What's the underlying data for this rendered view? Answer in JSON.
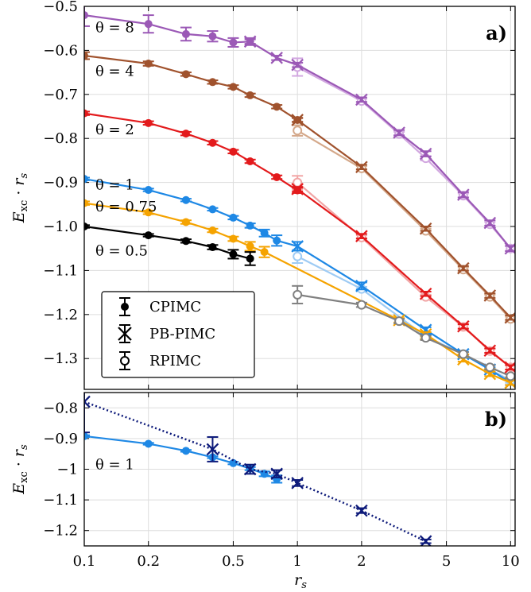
{
  "chart_data": [
    {
      "panel_label": "a)",
      "type": "line",
      "ylabel": "E_xc · r_s",
      "ylim": [
        -1.37,
        -0.5
      ],
      "x_scale": "log",
      "xlim": [
        0.1,
        10.5
      ],
      "grid": true,
      "legend": {
        "placement": "bottom-left",
        "entries": [
          {
            "label": "CPIMC",
            "marker": "filled-circle"
          },
          {
            "label": "PB-PIMC",
            "marker": "cross"
          },
          {
            "label": "RPIMC",
            "marker": "open-circle"
          }
        ]
      },
      "series": [
        {
          "theta_label": "θ = 8",
          "color": "#9b59b6",
          "light_color": "#d2a8e0",
          "cpimc": {
            "x": [
              0.1,
              0.2,
              0.3,
              0.4,
              0.5,
              0.6
            ],
            "y": [
              -0.52,
              -0.54,
              -0.563,
              -0.568,
              -0.582,
              -0.58
            ],
            "err": [
              0.025,
              0.02,
              0.015,
              0.012,
              0.01,
              0.008
            ]
          },
          "pbpimc": {
            "x": [
              0.6,
              0.8,
              1,
              2,
              3,
              4,
              6,
              8,
              10
            ],
            "y": [
              -0.58,
              -0.617,
              -0.633,
              -0.712,
              -0.787,
              -0.835,
              -0.928,
              -0.992,
              -1.05
            ],
            "err": [
              0.005,
              0.005,
              0.005,
              0.005,
              0.006,
              0.006,
              0.006,
              0.006,
              0.006
            ]
          },
          "rpimc": {
            "x": [
              1,
              2,
              3,
              4,
              6,
              8,
              10
            ],
            "y": [
              -0.638,
              -0.715,
              -0.79,
              -0.845,
              -0.93,
              -0.995,
              -1.05
            ],
            "err": [
              0.02,
              0.005,
              0.005,
              0.005,
              0.005,
              0.005,
              0.005
            ]
          }
        },
        {
          "theta_label": "θ = 4",
          "color": "#a0522d",
          "light_color": "#d4a88a",
          "cpimc": {
            "x": [
              0.1,
              0.2,
              0.3,
              0.4,
              0.5,
              0.6,
              0.8,
              1
            ],
            "y": [
              -0.612,
              -0.63,
              -0.654,
              -0.672,
              -0.683,
              -0.702,
              -0.728,
              -0.758
            ],
            "err": [
              0.008,
              0.005,
              0.004,
              0.004,
              0.004,
              0.004,
              0.004,
              0.004
            ]
          },
          "pbpimc": {
            "x": [
              1,
              2,
              4,
              6,
              8,
              10
            ],
            "y": [
              -0.758,
              -0.865,
              -1.005,
              -1.095,
              -1.157,
              -1.207
            ],
            "err": [
              0.005,
              0.005,
              0.005,
              0.005,
              0.005,
              0.005
            ]
          },
          "rpimc": {
            "x": [
              1,
              2,
              4,
              6,
              8,
              10
            ],
            "y": [
              -0.782,
              -0.868,
              -1.01,
              -1.098,
              -1.16,
              -1.21
            ],
            "err": [
              0.012,
              0.005,
              0.005,
              0.005,
              0.005,
              0.005
            ]
          }
        },
        {
          "theta_label": "θ = 2",
          "color": "#e31a1c",
          "light_color": "#f1a5a5",
          "cpimc": {
            "x": [
              0.1,
              0.2,
              0.3,
              0.4,
              0.5,
              0.6,
              0.8,
              1
            ],
            "y": [
              -0.743,
              -0.765,
              -0.789,
              -0.81,
              -0.83,
              -0.852,
              -0.888,
              -0.918
            ],
            "err": [
              0.004,
              0.004,
              0.004,
              0.004,
              0.004,
              0.004,
              0.004,
              0.006
            ]
          },
          "pbpimc": {
            "x": [
              1,
              2,
              4,
              6,
              8,
              10
            ],
            "y": [
              -0.915,
              -1.022,
              -1.153,
              -1.227,
              -1.282,
              -1.32
            ],
            "err": [
              0.005,
              0.005,
              0.005,
              0.005,
              0.005,
              0.005
            ]
          },
          "rpimc": {
            "x": [
              1,
              2,
              4,
              6,
              8,
              10
            ],
            "y": [
              -0.9,
              -1.025,
              -1.16,
              -1.228,
              -1.283,
              -1.32
            ],
            "err": [
              0.015,
              0.005,
              0.005,
              0.005,
              0.005,
              0.005
            ]
          }
        },
        {
          "theta_label": "θ = 1",
          "color": "#1e88e5",
          "light_color": "#9ecbf4",
          "cpimc": {
            "x": [
              0.1,
              0.2,
              0.3,
              0.4,
              0.5,
              0.6,
              0.7,
              0.8
            ],
            "y": [
              -0.892,
              -0.917,
              -0.94,
              -0.961,
              -0.98,
              -0.998,
              -1.015,
              -1.032
            ],
            "err": [
              0.003,
              0.003,
              0.003,
              0.003,
              0.004,
              0.005,
              0.008,
              0.012
            ]
          },
          "pbpimc": {
            "x": [
              1,
              2,
              4,
              6,
              8,
              10
            ],
            "y": [
              -1.045,
              -1.135,
              -1.235,
              -1.29,
              -1.325,
              -1.355
            ],
            "err": [
              0.01,
              0.008,
              0.006,
              0.005,
              0.005,
              0.005
            ]
          },
          "rpimc": {
            "x": [
              1,
              2,
              4,
              6,
              8,
              10
            ],
            "y": [
              -1.068,
              -1.142,
              -1.25,
              -1.29,
              -1.325,
              -1.35
            ],
            "err": [
              0.015,
              0.005,
              0.005,
              0.005,
              0.005,
              0.005
            ]
          }
        },
        {
          "theta_label": "θ = 0.75",
          "color": "#f5a300",
          "light_color": "#f9d27a",
          "cpimc": {
            "x": [
              0.1,
              0.2,
              0.3,
              0.4,
              0.5,
              0.6,
              0.7
            ],
            "y": [
              -0.947,
              -0.968,
              -0.99,
              -1.009,
              -1.028,
              -1.045,
              -1.058
            ],
            "err": [
              0.004,
              0.004,
              0.004,
              0.004,
              0.005,
              0.01,
              0.012
            ]
          },
          "pbpimc": {
            "x": [
              3,
              4,
              6,
              8,
              10
            ],
            "y": [
              -1.213,
              -1.245,
              -1.302,
              -1.335,
              -1.355
            ],
            "err": [
              0.005,
              0.005,
              0.005,
              0.005,
              0.005
            ]
          },
          "rpimc": {
            "x": [],
            "y": [],
            "err": []
          }
        },
        {
          "theta_label": "θ = 0.5",
          "color": "#000000",
          "light_color": "#808080",
          "cpimc": {
            "x": [
              0.1,
              0.2,
              0.3,
              0.4,
              0.5,
              0.6
            ],
            "y": [
              -1.0,
              -1.02,
              -1.033,
              -1.047,
              -1.063,
              -1.073
            ],
            "err": [
              0.003,
              0.003,
              0.004,
              0.005,
              0.01,
              0.015
            ]
          },
          "pbpimc": {
            "x": [],
            "y": [],
            "err": []
          },
          "rpimc": {
            "x": [
              1,
              2,
              3,
              4,
              6,
              8,
              10
            ],
            "y": [
              -1.155,
              -1.178,
              -1.215,
              -1.253,
              -1.29,
              -1.32,
              -1.34
            ],
            "err": [
              0.02,
              0.005,
              0.005,
              0.005,
              0.005,
              0.005,
              0.005
            ]
          }
        }
      ],
      "tick_labels_y": [
        "−0.5",
        "−0.6",
        "−0.7",
        "−0.8",
        "−0.9",
        "−1.0",
        "−1.1",
        "−1.2",
        "−1.3"
      ],
      "tick_values_y": [
        -0.5,
        -0.6,
        -0.7,
        -0.8,
        -0.9,
        -1.0,
        -1.1,
        -1.2,
        -1.3
      ]
    },
    {
      "panel_label": "b)",
      "type": "line",
      "ylabel": "E_xc · r_s",
      "xlabel": "r_s",
      "ylim": [
        -1.25,
        -0.75
      ],
      "x_scale": "log",
      "xlim": [
        0.1,
        10.5
      ],
      "grid": true,
      "theta_label": "θ = 1",
      "series": [
        {
          "name": "CPIMC",
          "color": "#1e88e5",
          "x": [
            0.1,
            0.2,
            0.3,
            0.4,
            0.5,
            0.6,
            0.7,
            0.8
          ],
          "y": [
            -0.892,
            -0.917,
            -0.94,
            -0.961,
            -0.98,
            -0.998,
            -1.015,
            -1.032
          ],
          "err": [
            0.003,
            0.003,
            0.003,
            0.003,
            0.004,
            0.005,
            0.008,
            0.012
          ]
        },
        {
          "name": "PB-PIMC",
          "color": "#0d1a7a",
          "x": [
            0.1,
            0.4,
            0.6,
            0.8,
            1,
            2,
            4
          ],
          "y": [
            -0.78,
            -0.935,
            -1.0,
            -1.015,
            -1.045,
            -1.135,
            -1.235
          ],
          "err": [
            0.1,
            0.04,
            0.015,
            0.012,
            0.01,
            0.008,
            0.006
          ]
        }
      ],
      "tick_labels_y": [
        "−0.8",
        "−0.9",
        "−1",
        "−1.1",
        "−1.2"
      ],
      "tick_values_y": [
        -0.8,
        -0.9,
        -1.0,
        -1.1,
        -1.2
      ]
    }
  ],
  "x_ticks": {
    "values": [
      0.1,
      0.2,
      0.5,
      1,
      2,
      5,
      10
    ],
    "labels": [
      "0.1",
      "0.2",
      "0.5",
      "1",
      "2",
      "5",
      "10"
    ]
  }
}
